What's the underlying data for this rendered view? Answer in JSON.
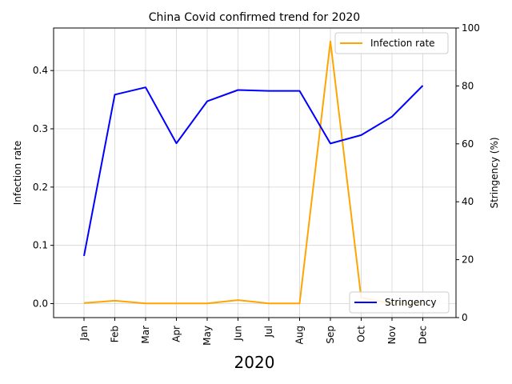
{
  "chart_data": {
    "type": "line",
    "title": "China Covid confirmed trend for 2020",
    "xlabel": "2020",
    "ylabel": "Infection rate",
    "ylabel_right": "Stringency (%)",
    "categories": [
      "Jan",
      "Feb",
      "Mar",
      "Apr",
      "May",
      "Jun",
      "Jul",
      "Aug",
      "Sep",
      "Oct",
      "Nov",
      "Dec"
    ],
    "ylim": [
      -0.024,
      0.473
    ],
    "ylim_right": [
      0,
      100
    ],
    "yticks": [
      "0.0",
      "0.1",
      "0.2",
      "0.3",
      "0.4"
    ],
    "yticks_right": [
      "0",
      "20",
      "40",
      "60",
      "80",
      "100"
    ],
    "grid": true,
    "series": [
      {
        "name": "Infection rate",
        "axis": "left",
        "color": "#FFA500",
        "values": [
          0.001,
          0.005,
          0.0005,
          0.0003,
          0.0003,
          0.006,
          0.0005,
          0.0005,
          0.45,
          0.01,
          0.0002,
          0.0001
        ],
        "legend_position": "upper right"
      },
      {
        "name": "Stringency",
        "axis": "right",
        "color": "#0000FF",
        "values": [
          21.3,
          77.0,
          79.5,
          60.2,
          74.7,
          78.6,
          78.3,
          78.3,
          60.1,
          63.0,
          69.4,
          80.1
        ],
        "legend_position": "lower right"
      }
    ]
  }
}
